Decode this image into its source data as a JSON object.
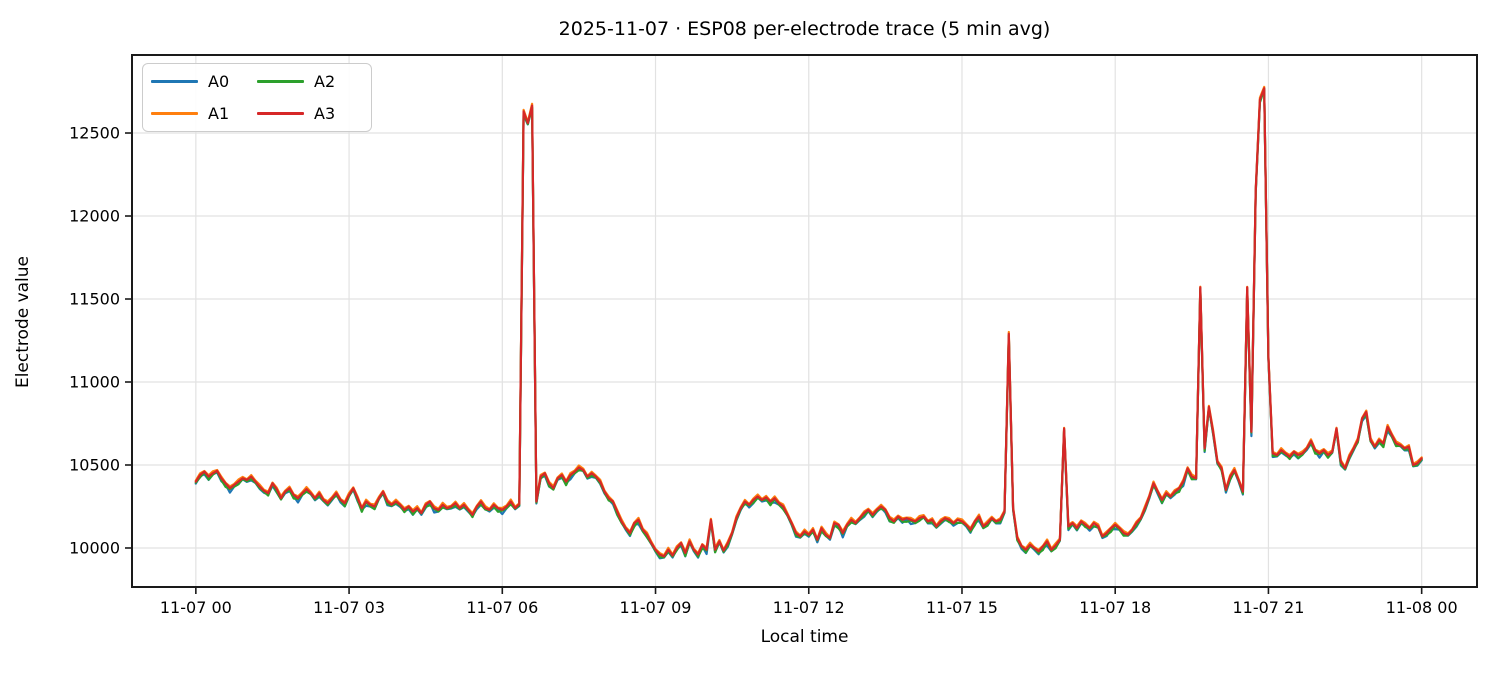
{
  "chart_data": {
    "type": "line",
    "title": "2025-11-07 · ESP08 per-electrode trace (5 min avg)",
    "xlabel": "Local time",
    "ylabel": "Electrode value",
    "grid": true,
    "legend_position": "upper left",
    "x_unit": "5-minute samples starting 2025-11-07 00:00 local",
    "xlim_samples": [
      -15,
      301
    ],
    "ylim": [
      9765,
      12970
    ],
    "y_ticks": [
      10000,
      10500,
      11000,
      11500,
      12000,
      12500
    ],
    "x_ticks": [
      {
        "i": 0,
        "label": "11-07 00"
      },
      {
        "i": 36,
        "label": "11-07 03"
      },
      {
        "i": 72,
        "label": "11-07 06"
      },
      {
        "i": 108,
        "label": "11-07 09"
      },
      {
        "i": 144,
        "label": "11-07 12"
      },
      {
        "i": 180,
        "label": "11-07 15"
      },
      {
        "i": 216,
        "label": "11-07 18"
      },
      {
        "i": 252,
        "label": "11-07 21"
      },
      {
        "i": 288,
        "label": "11-08 00"
      }
    ],
    "series_note": "Four electrode traces overlap almost exactly; each series value = base_values[i] + offsets[i mod offsets.length]. A3 (red) is drawn on top.",
    "base_values": [
      10400,
      10440,
      10460,
      10430,
      10450,
      10465,
      10420,
      10390,
      10360,
      10380,
      10400,
      10420,
      10410,
      10430,
      10400,
      10370,
      10345,
      10330,
      10390,
      10355,
      10300,
      10340,
      10360,
      10320,
      10300,
      10330,
      10355,
      10330,
      10300,
      10330,
      10290,
      10270,
      10300,
      10330,
      10290,
      10270,
      10320,
      10360,
      10300,
      10240,
      10280,
      10260,
      10250,
      10300,
      10340,
      10280,
      10260,
      10280,
      10260,
      10230,
      10250,
      10220,
      10240,
      10210,
      10260,
      10280,
      10240,
      10230,
      10260,
      10240,
      10250,
      10270,
      10240,
      10260,
      10230,
      10200,
      10250,
      10280,
      10240,
      10230,
      10260,
      10240,
      10230,
      10250,
      10280,
      10240,
      10265,
      12630,
      12560,
      12665,
      10280,
      10430,
      10450,
      10390,
      10360,
      10420,
      10440,
      10400,
      10440,
      10460,
      10485,
      10470,
      10430,
      10450,
      10430,
      10400,
      10340,
      10300,
      10280,
      10220,
      10160,
      10120,
      10090,
      10150,
      10170,
      10110,
      10080,
      10030,
      9990,
      9960,
      9950,
      9990,
      9955,
      10000,
      10030,
      9970,
      10040,
      9990,
      9960,
      10020,
      9990,
      10170,
      9990,
      10040,
      9985,
      10030,
      10090,
      10180,
      10240,
      10280,
      10260,
      10290,
      10310,
      10290,
      10305,
      10280,
      10300,
      10270,
      10250,
      10200,
      10150,
      10090,
      10070,
      10100,
      10080,
      10110,
      10050,
      10120,
      10080,
      10060,
      10150,
      10140,
      10090,
      10140,
      10170,
      10150,
      10180,
      10210,
      10230,
      10200,
      10230,
      10250,
      10230,
      10180,
      10160,
      10190,
      10170,
      10180,
      10170,
      10160,
      10180,
      10190,
      10160,
      10170,
      10130,
      10160,
      10180,
      10170,
      10150,
      10170,
      10160,
      10140,
      10110,
      10160,
      10190,
      10130,
      10150,
      10180,
      10160,
      10170,
      10220,
      11290,
      10240,
      10060,
      10010,
      9990,
      10020,
      10000,
      9980,
      10010,
      10040,
      9990,
      10015,
      10050,
      10720,
      10130,
      10150,
      10120,
      10160,
      10140,
      10120,
      10150,
      10130,
      10070,
      10090,
      10120,
      10140,
      10120,
      10090,
      10080,
      10110,
      10150,
      10180,
      10240,
      10310,
      10390,
      10340,
      10290,
      10330,
      10310,
      10340,
      10360,
      10400,
      10480,
      10430,
      10420,
      11570,
      10600,
      10850,
      10700,
      10520,
      10480,
      10350,
      10430,
      10470,
      10410,
      10340,
      11570,
      10700,
      12150,
      12700,
      12770,
      11150,
      10570,
      10560,
      10590,
      10570,
      10550,
      10580,
      10560,
      10570,
      10600,
      10645,
      10590,
      10570,
      10590,
      10560,
      10580,
      10720,
      10520,
      10480,
      10550,
      10600,
      10650,
      10780,
      10820,
      10650,
      10610,
      10650,
      10630,
      10730,
      10680,
      10630,
      10620,
      10600,
      10610,
      10500,
      10510,
      10540
    ],
    "series": [
      {
        "name": "A0",
        "color": "#1f77b4",
        "offsets": [
          -12,
          -8,
          -16,
          -20,
          -6,
          -10,
          -18,
          -8,
          -26,
          -10,
          -14,
          -6,
          -12,
          -22,
          -8,
          -14
        ]
      },
      {
        "name": "A1",
        "color": "#ff7f0e",
        "offsets": [
          6,
          10,
          4,
          8,
          12,
          5,
          9,
          3,
          11,
          6,
          12,
          8,
          4,
          9,
          6,
          11
        ]
      },
      {
        "name": "A2",
        "color": "#2ca02c",
        "offsets": [
          -6,
          -14,
          -4,
          -18,
          -8,
          -3,
          -12,
          -22,
          -5,
          -10,
          -16,
          -4,
          -8,
          -15,
          -6,
          -10
        ]
      },
      {
        "name": "A3",
        "color": "#d62728",
        "offsets": [
          0
        ]
      }
    ],
    "style": {
      "grid_color": "#e2e2e2",
      "spine_color": "#1a1a1a",
      "tick_color": "#1a1a1a",
      "line_width": 2.2
    }
  }
}
